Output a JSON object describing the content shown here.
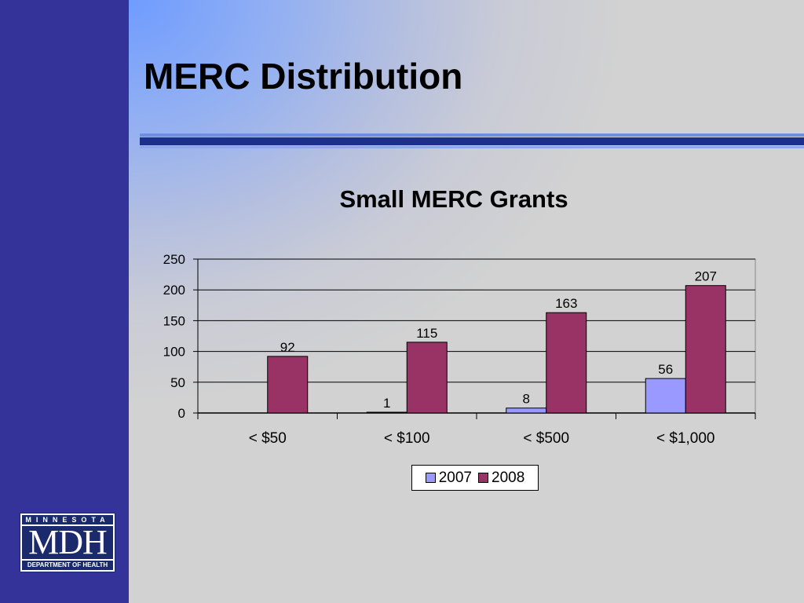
{
  "slide": {
    "title": "MERC Distribution"
  },
  "colors": {
    "sidebar": "#333399",
    "series_2007": "#9999ff",
    "series_2008": "#993366",
    "header_rule": "#1c2f8a"
  },
  "logo": {
    "top_text": "MINNESOTA",
    "main_text": "MDH",
    "bottom_text": "DEPARTMENT OF HEALTH"
  },
  "chart_data": {
    "type": "bar",
    "title": "Small MERC Grants",
    "categories": [
      "< $50",
      "< $100",
      "< $500",
      "< $1,000"
    ],
    "series": [
      {
        "name": "2007",
        "values": [
          null,
          1,
          8,
          56
        ]
      },
      {
        "name": "2008",
        "values": [
          92,
          115,
          163,
          207
        ]
      }
    ],
    "ylim": [
      0,
      250
    ],
    "yticks": [
      0,
      50,
      100,
      150,
      200,
      250
    ],
    "xlabel": "",
    "ylabel": "",
    "grid": true,
    "legend": "bottom",
    "data_labels": true
  }
}
